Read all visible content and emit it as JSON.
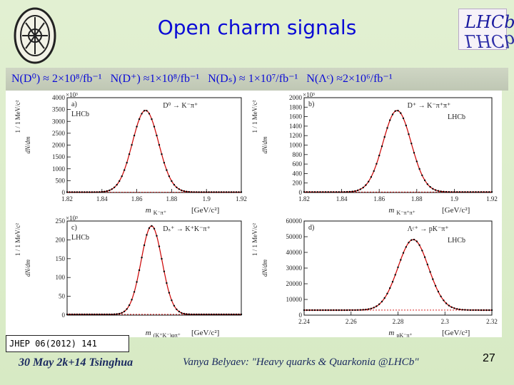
{
  "title": "Open charm signals",
  "logo_text": "LHCb",
  "yields": [
    "N(D⁰) ≈ 2×10⁸/fb⁻¹",
    "N(D⁺) ≈1×10⁸/fb⁻¹",
    "N(Dₛ) ≈ 1×10⁷/fb⁻¹",
    "N(Λᶜ) ≈2×10⁶/fb⁻¹"
  ],
  "reference": "JHEP 06(2012) 141",
  "footer_left": "30 May 2k+14 Tsinghua",
  "footer_middle": "Vanya Belyaev: \"Heavy quarks & Quarkonia @LHCb\"",
  "page_number": "27",
  "colors": {
    "title": "#0b0bd6",
    "fit": "#cc0000",
    "background": "#dbecc8"
  },
  "chart_data": [
    {
      "type": "scatter",
      "panel_label": "a)",
      "lhcb_label": "LHCb",
      "decay": "D⁰ → K⁻π⁺",
      "xlabel": "m",
      "xlabel_sub": "K⁻π⁺",
      "xunit": "[GeV/c²]",
      "ylabel": "dN/dm",
      "yunit_label": "1 / 1 MeV/c²",
      "multiplier": "×10³",
      "xlim": [
        1.82,
        1.92
      ],
      "ylim": [
        0,
        4000
      ],
      "xticks": [
        "1.82",
        "1.84",
        "1.86",
        "1.88",
        "1.9",
        "1.92"
      ],
      "yticks": [
        "0",
        "500",
        "1000",
        "1500",
        "2000",
        "2500",
        "3000",
        "3500",
        "4000"
      ],
      "peak": {
        "mean": 1.865,
        "sigma": 0.0075,
        "amplitude": 3450,
        "background": 15
      }
    },
    {
      "type": "scatter",
      "panel_label": "b)",
      "lhcb_label": "LHCb",
      "decay": "D⁺ → K⁻π⁺π⁺",
      "xlabel": "m",
      "xlabel_sub": "K⁻π⁺π⁺",
      "xunit": "[GeV/c²]",
      "ylabel": "dN/dm",
      "yunit_label": "1 / 1 MeV/c²",
      "multiplier": "×10³",
      "xlim": [
        1.82,
        1.92
      ],
      "ylim": [
        0,
        2000
      ],
      "xticks": [
        "1.82",
        "1.84",
        "1.86",
        "1.88",
        "1.9",
        "1.92"
      ],
      "yticks": [
        "0",
        "200",
        "400",
        "600",
        "800",
        "1000",
        "1200",
        "1400",
        "1600",
        "1800",
        "2000"
      ],
      "peak": {
        "mean": 1.8695,
        "sigma": 0.0075,
        "amplitude": 1720,
        "background": 10
      }
    },
    {
      "type": "scatter",
      "panel_label": "c)",
      "lhcb_label": "LHCb",
      "decay": "Dₛ⁺ → K⁺K⁻π⁺",
      "xlabel": "m",
      "xlabel_sub": "(K⁺K⁻)φπ⁺",
      "xunit": "[GeV/c²]",
      "ylabel": "dN/dm",
      "yunit_label": "1 / 1 MeV/c²",
      "multiplier": "×10³",
      "xlim": [
        1.92,
        2.02
      ],
      "ylim": [
        0,
        250
      ],
      "xticks": [],
      "yticks": [
        "0",
        "50",
        "100",
        "150",
        "200",
        "250"
      ],
      "peak": {
        "mean": 1.9685,
        "sigma": 0.006,
        "amplitude": 235,
        "background": 2
      }
    },
    {
      "type": "scatter",
      "panel_label": "d)",
      "lhcb_label": "LHCb",
      "decay": "Λᶜ⁺ → pK⁻π⁺",
      "xlabel": "m",
      "xlabel_sub": "pK⁻π⁺",
      "xunit": "[GeV/c²]",
      "ylabel": "dN/dm",
      "yunit_label": "1 / 1 MeV/c²",
      "multiplier": "",
      "xlim": [
        2.24,
        2.32
      ],
      "ylim": [
        0,
        60000
      ],
      "xticks": [
        "2.24",
        "2.26",
        "2.28",
        "2.3",
        "2.32"
      ],
      "yticks": [
        "0",
        "10000",
        "20000",
        "30000",
        "40000",
        "50000",
        "60000"
      ],
      "peak": {
        "mean": 2.2865,
        "sigma": 0.0065,
        "amplitude": 45000,
        "background": 3200
      }
    }
  ]
}
